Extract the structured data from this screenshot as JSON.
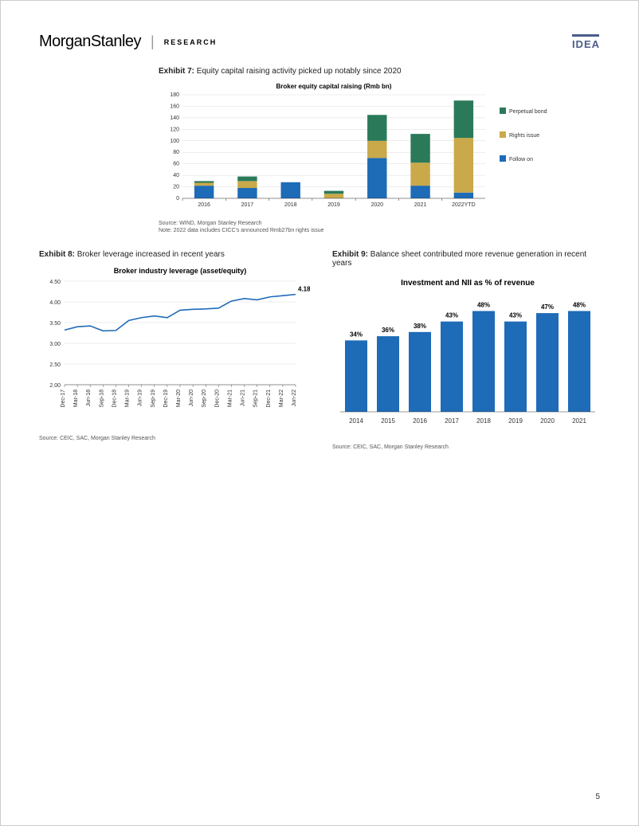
{
  "header": {
    "brand_first": "Morgan",
    "brand_second": "Stanley",
    "research": "RESEARCH",
    "idea": "IDEA"
  },
  "exhibit7": {
    "label_prefix": "Exhibit 7:",
    "label_text": "Equity capital raising activity picked up notably since 2020",
    "title": "Broker equity capital raising (Rmb bn)",
    "type": "stacked-bar",
    "categories": [
      "2016",
      "2017",
      "2018",
      "2019",
      "2020",
      "2021",
      "2022YTD"
    ],
    "series": [
      {
        "name": "Follow on",
        "color": "#1e6bb8",
        "values": [
          22,
          18,
          28,
          0,
          70,
          22,
          10
        ]
      },
      {
        "name": "Rights issue",
        "color": "#c9a94a",
        "values": [
          5,
          12,
          0,
          8,
          30,
          40,
          95
        ]
      },
      {
        "name": "Perpetual bond",
        "color": "#2a7a5a",
        "values": [
          3,
          8,
          0,
          5,
          45,
          50,
          65
        ]
      }
    ],
    "ylim": [
      0,
      180
    ],
    "ytick_step": 20,
    "bar_width": 0.45,
    "grid_color": "#d9d9d9",
    "axis_font": 7,
    "title_font": 8,
    "legend_font": 7,
    "source": "Source: WIND, Morgan Stanley Research",
    "note": "Note: 2022 data includes CICC's announced Rmb27bn rights issue"
  },
  "exhibit8": {
    "label_prefix": "Exhibit 8:",
    "label_text": "Broker leverage increased in recent years",
    "title": "Broker industry leverage (asset/equity)",
    "type": "line",
    "x_labels": [
      "Dec-17",
      "Mar-18",
      "Jun-18",
      "Sep-18",
      "Dec-18",
      "Mar-19",
      "Jun-19",
      "Sep-19",
      "Dec-19",
      "Mar-20",
      "Jun-20",
      "Sep-20",
      "Dec-20",
      "Mar-21",
      "Jun-21",
      "Sep-21",
      "Dec-21",
      "Mar-22",
      "Jun-22"
    ],
    "values": [
      3.32,
      3.4,
      3.42,
      3.3,
      3.31,
      3.55,
      3.62,
      3.66,
      3.62,
      3.8,
      3.82,
      3.83,
      3.85,
      4.02,
      4.08,
      4.05,
      4.12,
      4.15,
      4.18
    ],
    "end_label": "4.18",
    "ylim": [
      2.0,
      4.5
    ],
    "ytick_step": 0.5,
    "line_color": "#1e6bb8",
    "line_width": 1.6,
    "grid_color": "#d9d9d9",
    "axis_font": 7,
    "title_font": 9,
    "source": "Source: CEIC, SAC, Morgan Stanley Research"
  },
  "exhibit9": {
    "label_prefix": "Exhibit 9:",
    "label_text": "Balance sheet contributed more revenue generation in recent years",
    "title": "Investment and NII as % of revenue",
    "type": "bar",
    "categories": [
      "2014",
      "2015",
      "2016",
      "2017",
      "2018",
      "2019",
      "2020",
      "2021"
    ],
    "values": [
      34,
      36,
      38,
      43,
      48,
      43,
      47,
      48
    ],
    "value_suffix": "%",
    "bar_color": "#1e6bb8",
    "bar_width": 0.7,
    "ylim": [
      0,
      55
    ],
    "axis_font": 8,
    "title_font": 10,
    "value_font": 8,
    "grid_color": "#d9d9d9",
    "source": "Source: CEIC, SAC, Morgan Stanley Research"
  },
  "page_number": "5"
}
